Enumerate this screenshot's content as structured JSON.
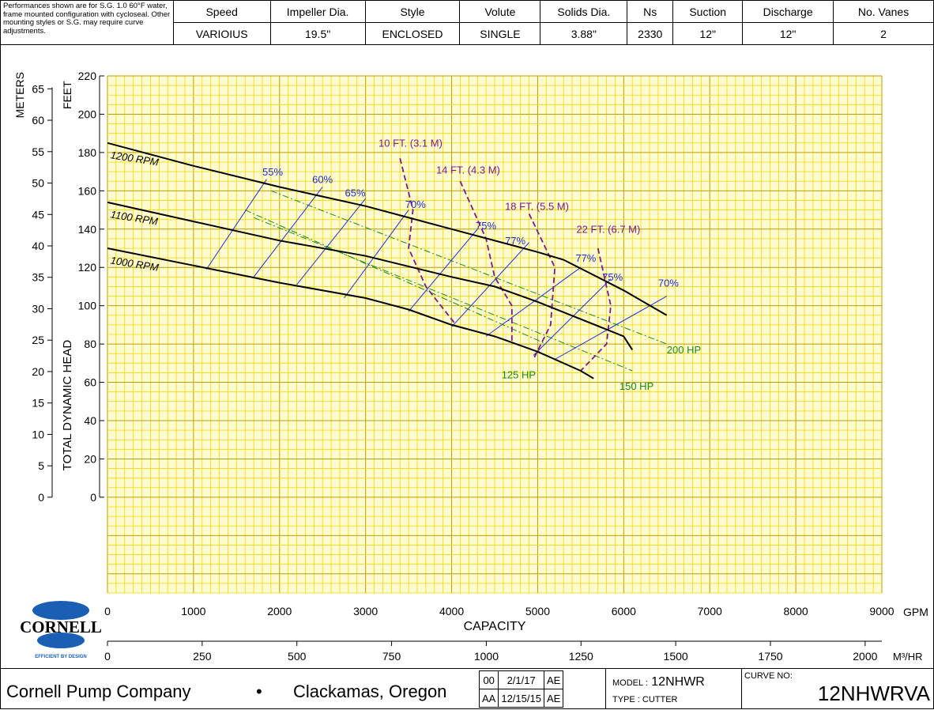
{
  "header": {
    "note": "Performances shown are for S.G. 1.0 60°F water, frame mounted configuration with cycloseal. Other mounting styles or S.G. may require curve adjustments.",
    "columns": [
      "Speed",
      "Impeller Dia.",
      "Style",
      "Volute",
      "Solids Dia.",
      "Ns",
      "Suction",
      "Discharge",
      "No. Vanes"
    ],
    "values": [
      "VARIOIUS",
      "19.5\"",
      "ENCLOSED",
      "SINGLE",
      "3.88\"",
      "2330",
      "12\"",
      "12\"",
      "2"
    ]
  },
  "chart_data": {
    "type": "line",
    "xlabel": "CAPACITY",
    "x_unit_primary": "GPM",
    "x_unit_secondary": "M³/HR",
    "ylabel": "TOTAL DYNAMIC HEAD",
    "y_unit_primary": "FEET",
    "y_unit_secondary": "METERS",
    "xlim": [
      0,
      9000
    ],
    "ylim": [
      -50,
      220
    ],
    "x_ticks": [
      0,
      1000,
      2000,
      3000,
      4000,
      5000,
      6000,
      7000,
      8000,
      9000
    ],
    "y_ticks": [
      0,
      20,
      40,
      60,
      80,
      100,
      120,
      140,
      160,
      180,
      200,
      220
    ],
    "m3hr_ticks": [
      0,
      250,
      500,
      750,
      1000,
      1250,
      1500,
      1750,
      2000
    ],
    "meter_ticks": [
      0,
      5,
      10,
      15,
      20,
      25,
      30,
      35,
      40,
      45,
      50,
      55,
      60,
      65
    ],
    "grid": true,
    "series": [
      {
        "name": "1200 RPM",
        "kind": "head",
        "points": [
          [
            0,
            185
          ],
          [
            1000,
            173
          ],
          [
            2000,
            162
          ],
          [
            3000,
            152
          ],
          [
            4000,
            140
          ],
          [
            5000,
            128
          ],
          [
            5300,
            124
          ],
          [
            6000,
            108
          ],
          [
            6500,
            95
          ]
        ]
      },
      {
        "name": "1100 RPM",
        "kind": "head",
        "points": [
          [
            0,
            154
          ],
          [
            1000,
            144
          ],
          [
            2000,
            134
          ],
          [
            3000,
            126
          ],
          [
            4000,
            115
          ],
          [
            4500,
            110
          ],
          [
            5000,
            102
          ],
          [
            6000,
            84
          ],
          [
            6100,
            77
          ]
        ]
      },
      {
        "name": "1000 RPM",
        "kind": "head",
        "points": [
          [
            0,
            130
          ],
          [
            1000,
            121
          ],
          [
            2000,
            112
          ],
          [
            3000,
            104
          ],
          [
            3500,
            98
          ],
          [
            4000,
            90
          ],
          [
            4500,
            84
          ],
          [
            5000,
            76
          ],
          [
            5500,
            66
          ],
          [
            5650,
            62
          ]
        ]
      }
    ],
    "efficiency_lines": [
      {
        "label": "55%",
        "points": [
          [
            1150,
            119
          ],
          [
            1850,
            166
          ]
        ]
      },
      {
        "label": "60%",
        "points": [
          [
            1700,
            115
          ],
          [
            2500,
            162
          ]
        ]
      },
      {
        "label": "65%",
        "points": [
          [
            2200,
            111
          ],
          [
            3000,
            156
          ]
        ]
      },
      {
        "label": "70%",
        "points": [
          [
            2750,
            104
          ],
          [
            3500,
            150
          ]
        ]
      },
      {
        "label": "75%",
        "points": [
          [
            3500,
            97
          ],
          [
            4300,
            140
          ]
        ]
      },
      {
        "label": "77%",
        "points": [
          [
            4000,
            89
          ],
          [
            4900,
            133
          ]
        ]
      },
      {
        "label": "77%",
        "points": [
          [
            4400,
            84
          ],
          [
            5500,
            120
          ]
        ]
      },
      {
        "label": "75%",
        "points": [
          [
            4950,
            74
          ],
          [
            5850,
            114
          ]
        ]
      },
      {
        "label": "70%",
        "points": [
          [
            5200,
            72
          ],
          [
            6500,
            105
          ]
        ]
      }
    ],
    "npsh_curves": [
      {
        "label": "10 FT. (3.1 M)",
        "points": [
          [
            3400,
            177
          ],
          [
            3550,
            150
          ],
          [
            3500,
            130
          ],
          [
            3700,
            110
          ],
          [
            4050,
            90
          ]
        ]
      },
      {
        "label": "14 FT. (4.3 M)",
        "points": [
          [
            4100,
            165
          ],
          [
            4400,
            135
          ],
          [
            4500,
            115
          ],
          [
            4700,
            100
          ],
          [
            4700,
            80
          ]
        ]
      },
      {
        "label": "18 FT. (5.5 M)",
        "points": [
          [
            4900,
            148
          ],
          [
            5200,
            120
          ],
          [
            5150,
            90
          ],
          [
            4950,
            72
          ]
        ]
      },
      {
        "label": "22 FT. (6.7 M)",
        "points": [
          [
            5700,
            130
          ],
          [
            5850,
            100
          ],
          [
            5800,
            80
          ],
          [
            5500,
            66
          ]
        ]
      }
    ],
    "hp_lines": [
      {
        "label": "125 HP",
        "points": [
          [
            1600,
            150
          ],
          [
            5100,
            80
          ]
        ]
      },
      {
        "label": "150 HP",
        "points": [
          [
            1700,
            146
          ],
          [
            6100,
            66
          ]
        ]
      },
      {
        "label": "200 HP",
        "points": [
          [
            1900,
            160
          ],
          [
            6500,
            80
          ]
        ]
      }
    ]
  },
  "legend_logo": {
    "name": "CORNELL",
    "tagline": "EFFICIENT BY DESIGN"
  },
  "footer": {
    "company": "Cornell Pump Company",
    "separator": "•",
    "location": "Clackamas, Oregon",
    "revisions": [
      [
        "00",
        "2/1/17",
        "AE"
      ],
      [
        "AA",
        "12/15/15",
        "AE"
      ]
    ],
    "model_label": "MODEL :",
    "model_value": "12NHWR",
    "type_label": "TYPE : CUTTER",
    "curve_label": "CURVE NO:",
    "curve_value": "12NHWRVA"
  },
  "colors": {
    "grid": "#f5d800",
    "grid_bg": "#fffbd0",
    "head": "#000000",
    "efficiency": "#1b2fd8",
    "npsh": "#7a1a8a",
    "hp": "#1a8a1a"
  }
}
